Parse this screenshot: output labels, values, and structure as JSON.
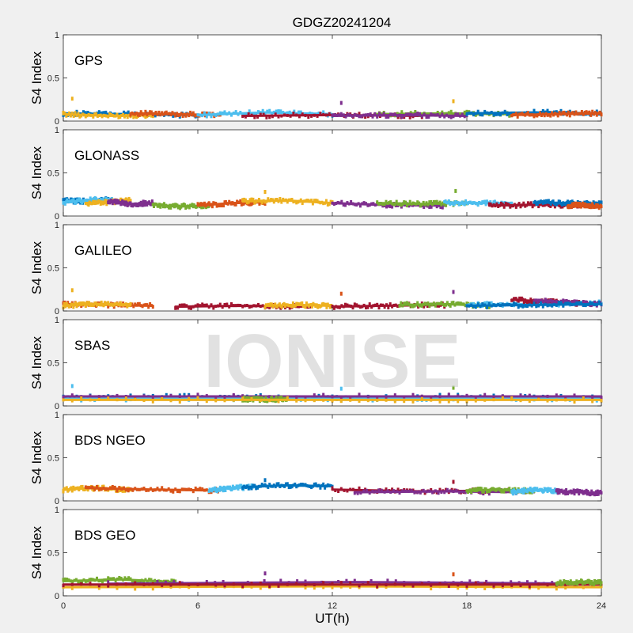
{
  "figure": {
    "title": "GDGZ20241204",
    "watermark": "IONISE",
    "xlabel": "UT(h)",
    "background": "#f0f0f0"
  },
  "chart_data": {
    "type": "scatter",
    "title": "GDGZ20241204",
    "xlabel": "UT(h)",
    "ylabel": "S4 Index",
    "xlim": [
      0,
      24
    ],
    "ylim": [
      0,
      1
    ],
    "xticks": [
      "0",
      "6",
      "12",
      "18",
      "24"
    ],
    "yticks": [
      "0",
      "0.5",
      "1"
    ],
    "grid": false,
    "colors": [
      "#0072BD",
      "#D95319",
      "#EDB120",
      "#7E2F8E",
      "#77AC30",
      "#4DBEEE",
      "#A2142F"
    ],
    "panels": [
      {
        "label": "GPS",
        "segments": [
          {
            "color_index": 0,
            "x": [
              0,
              3,
              6
            ],
            "y": [
              0.09,
              0.08,
              0.07
            ]
          },
          {
            "color_index": 2,
            "x": [
              0,
              2,
              4
            ],
            "y": [
              0.08,
              0.06,
              0.07
            ]
          },
          {
            "color_index": 1,
            "x": [
              3,
              5,
              7
            ],
            "y": [
              0.09,
              0.08,
              0.07
            ]
          },
          {
            "color_index": 5,
            "x": [
              6,
              9,
              12
            ],
            "y": [
              0.07,
              0.1,
              0.08
            ]
          },
          {
            "color_index": 6,
            "x": [
              8,
              12,
              16
            ],
            "y": [
              0.06,
              0.07,
              0.06
            ]
          },
          {
            "color_index": 4,
            "x": [
              14,
              17,
              20
            ],
            "y": [
              0.08,
              0.09,
              0.08
            ]
          },
          {
            "color_index": 3,
            "x": [
              12,
              15,
              18
            ],
            "y": [
              0.06,
              0.07,
              0.06
            ]
          },
          {
            "color_index": 0,
            "x": [
              18,
              21,
              24
            ],
            "y": [
              0.09,
              0.1,
              0.09
            ]
          },
          {
            "color_index": 1,
            "x": [
              20,
              22,
              24
            ],
            "y": [
              0.07,
              0.08,
              0.09
            ]
          }
        ],
        "outliers": [
          {
            "x": 0.4,
            "y": 0.26,
            "color_index": 2
          },
          {
            "x": 12.4,
            "y": 0.21,
            "color_index": 3
          },
          {
            "x": 17.4,
            "y": 0.23,
            "color_index": 2
          }
        ]
      },
      {
        "label": "GLONASS",
        "segments": [
          {
            "color_index": 0,
            "x": [
              0,
              1,
              2
            ],
            "y": [
              0.18,
              0.17,
              0.19
            ]
          },
          {
            "color_index": 5,
            "x": [
              0,
              1.5,
              2.5
            ],
            "y": [
              0.16,
              0.19,
              0.17
            ]
          },
          {
            "color_index": 2,
            "x": [
              1,
              2,
              3
            ],
            "y": [
              0.15,
              0.16,
              0.18
            ]
          },
          {
            "color_index": 3,
            "x": [
              2,
              3,
              4
            ],
            "y": [
              0.17,
              0.14,
              0.15
            ]
          },
          {
            "color_index": 4,
            "x": [
              4,
              5,
              6.5
            ],
            "y": [
              0.13,
              0.11,
              0.12
            ]
          },
          {
            "color_index": 1,
            "x": [
              6,
              7.5,
              9
            ],
            "y": [
              0.12,
              0.15,
              0.16
            ]
          },
          {
            "color_index": 2,
            "x": [
              8,
              10,
              12
            ],
            "y": [
              0.17,
              0.18,
              0.15
            ]
          },
          {
            "color_index": 3,
            "x": [
              12,
              14,
              17
            ],
            "y": [
              0.15,
              0.13,
              0.12
            ]
          },
          {
            "color_index": 4,
            "x": [
              14,
              16,
              18
            ],
            "y": [
              0.15,
              0.14,
              0.15
            ]
          },
          {
            "color_index": 5,
            "x": [
              17,
              18.5,
              20
            ],
            "y": [
              0.16,
              0.15,
              0.14
            ]
          },
          {
            "color_index": 6,
            "x": [
              19,
              21,
              23
            ],
            "y": [
              0.12,
              0.13,
              0.12
            ]
          },
          {
            "color_index": 0,
            "x": [
              21,
              22.5,
              24
            ],
            "y": [
              0.16,
              0.15,
              0.14
            ]
          },
          {
            "color_index": 1,
            "x": [
              22.5,
              23.2,
              24
            ],
            "y": [
              0.12,
              0.13,
              0.11
            ]
          }
        ],
        "outliers": [
          {
            "x": 9,
            "y": 0.28,
            "color_index": 2
          },
          {
            "x": 17.5,
            "y": 0.29,
            "color_index": 4
          }
        ]
      },
      {
        "label": "GALILEO",
        "segments": [
          {
            "color_index": 1,
            "x": [
              0,
              2,
              4
            ],
            "y": [
              0.08,
              0.07,
              0.06
            ]
          },
          {
            "color_index": 2,
            "x": [
              0,
              1.5,
              3
            ],
            "y": [
              0.06,
              0.08,
              0.07
            ]
          },
          {
            "color_index": 6,
            "x": [
              5,
              8,
              11
            ],
            "y": [
              0.05,
              0.06,
              0.05
            ]
          },
          {
            "color_index": 2,
            "x": [
              9,
              10.5,
              12
            ],
            "y": [
              0.06,
              0.07,
              0.06
            ]
          },
          {
            "color_index": 6,
            "x": [
              12,
              14,
              17
            ],
            "y": [
              0.05,
              0.06,
              0.07
            ]
          },
          {
            "color_index": 4,
            "x": [
              15,
              17,
              19
            ],
            "y": [
              0.07,
              0.08,
              0.06
            ]
          },
          {
            "color_index": 5,
            "x": [
              18,
              21,
              24
            ],
            "y": [
              0.07,
              0.08,
              0.09
            ]
          },
          {
            "color_index": 6,
            "x": [
              20,
              21.5,
              23
            ],
            "y": [
              0.13,
              0.11,
              0.09
            ]
          },
          {
            "color_index": 3,
            "x": [
              21,
              22.5,
              24
            ],
            "y": [
              0.12,
              0.1,
              0.08
            ]
          },
          {
            "color_index": 0,
            "x": [
              18,
              21,
              24
            ],
            "y": [
              0.06,
              0.07,
              0.08
            ]
          }
        ],
        "outliers": [
          {
            "x": 0.4,
            "y": 0.24,
            "color_index": 2
          },
          {
            "x": 12.4,
            "y": 0.2,
            "color_index": 1
          },
          {
            "x": 17.4,
            "y": 0.22,
            "color_index": 3
          }
        ]
      },
      {
        "label": "SBAS",
        "segments": [
          {
            "color_index": 0,
            "x": [
              0,
              6,
              12
            ],
            "y": [
              0.1,
              0.11,
              0.1
            ]
          },
          {
            "color_index": 0,
            "x": [
              12,
              18,
              24
            ],
            "y": [
              0.1,
              0.11,
              0.1
            ]
          },
          {
            "color_index": 5,
            "x": [
              0,
              6,
              12
            ],
            "y": [
              0.08,
              0.09,
              0.08
            ]
          },
          {
            "color_index": 5,
            "x": [
              12,
              18,
              24
            ],
            "y": [
              0.08,
              0.09,
              0.08
            ]
          },
          {
            "color_index": 3,
            "x": [
              0,
              12,
              24
            ],
            "y": [
              0.11,
              0.11,
              0.11
            ]
          },
          {
            "color_index": 4,
            "x": [
              8,
              9,
              10
            ],
            "y": [
              0.08,
              0.07,
              0.08
            ]
          },
          {
            "color_index": 2,
            "x": [
              0,
              12,
              24
            ],
            "y": [
              0.07,
              0.07,
              0.07
            ]
          }
        ],
        "outliers": [
          {
            "x": 0.4,
            "y": 0.23,
            "color_index": 5
          },
          {
            "x": 12.4,
            "y": 0.2,
            "color_index": 5
          },
          {
            "x": 17.4,
            "y": 0.21,
            "color_index": 4
          }
        ]
      },
      {
        "label": "BDS NGEO",
        "segments": [
          {
            "color_index": 2,
            "x": [
              0,
              1.5,
              3
            ],
            "y": [
              0.13,
              0.15,
              0.12
            ]
          },
          {
            "color_index": 1,
            "x": [
              1,
              4,
              7
            ],
            "y": [
              0.15,
              0.13,
              0.12
            ]
          },
          {
            "color_index": 5,
            "x": [
              6.5,
              7.5,
              8.5
            ],
            "y": [
              0.12,
              0.15,
              0.16
            ]
          },
          {
            "color_index": 0,
            "x": [
              8,
              10,
              12
            ],
            "y": [
              0.16,
              0.18,
              0.17
            ]
          },
          {
            "color_index": 6,
            "x": [
              12,
              16,
              20
            ],
            "y": [
              0.13,
              0.11,
              0.12
            ]
          },
          {
            "color_index": 3,
            "x": [
              13,
              17,
              21
            ],
            "y": [
              0.1,
              0.11,
              0.1
            ]
          },
          {
            "color_index": 4,
            "x": [
              18,
              19.5,
              21
            ],
            "y": [
              0.12,
              0.13,
              0.11
            ]
          },
          {
            "color_index": 5,
            "x": [
              20,
              21,
              22
            ],
            "y": [
              0.1,
              0.13,
              0.11
            ]
          },
          {
            "color_index": 3,
            "x": [
              22,
              23,
              24
            ],
            "y": [
              0.11,
              0.1,
              0.09
            ]
          }
        ],
        "outliers": [
          {
            "x": 9,
            "y": 0.24,
            "color_index": 0
          },
          {
            "x": 17.4,
            "y": 0.22,
            "color_index": 6
          }
        ]
      },
      {
        "label": "BDS GEO",
        "segments": [
          {
            "color_index": 4,
            "x": [
              0,
              2.5,
              5
            ],
            "y": [
              0.17,
              0.19,
              0.16
            ]
          },
          {
            "color_index": 3,
            "x": [
              2,
              13,
              24
            ],
            "y": [
              0.14,
              0.16,
              0.14
            ]
          },
          {
            "color_index": 2,
            "x": [
              0,
              12,
              24
            ],
            "y": [
              0.1,
              0.11,
              0.1
            ]
          },
          {
            "color_index": 6,
            "x": [
              0,
              12,
              24
            ],
            "y": [
              0.13,
              0.13,
              0.13
            ]
          },
          {
            "color_index": 4,
            "x": [
              22,
              23,
              24
            ],
            "y": [
              0.15,
              0.16,
              0.15
            ]
          }
        ],
        "outliers": [
          {
            "x": 9,
            "y": 0.26,
            "color_index": 3
          },
          {
            "x": 17.4,
            "y": 0.25,
            "color_index": 1
          }
        ]
      }
    ]
  }
}
